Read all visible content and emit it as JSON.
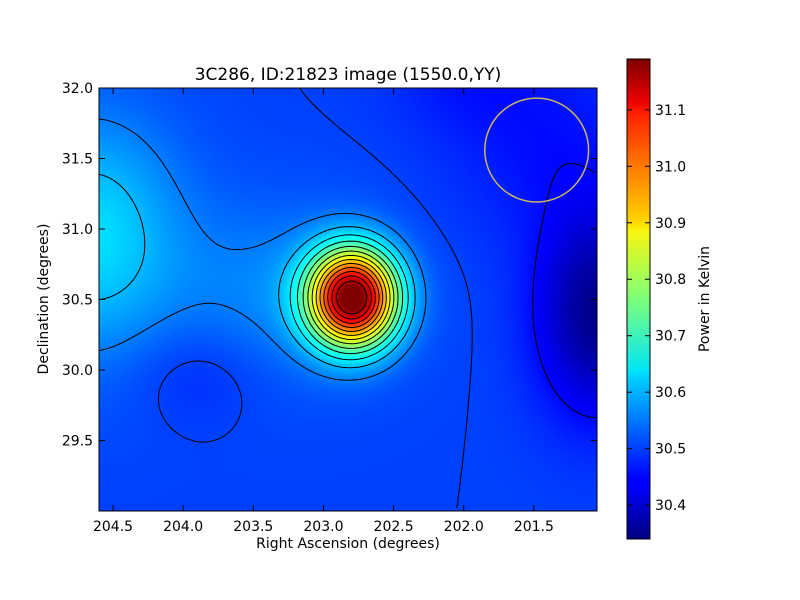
{
  "chart_data": {
    "type": "heatmap",
    "title": "3C286, ID:21823 image (1550.0,YY)",
    "xlabel": "Right Ascension (degrees)",
    "ylabel": "Declination (degrees)",
    "xlim": [
      204.6,
      201.05
    ],
    "ylim": [
      29.0,
      32.0
    ],
    "x_reversed": true,
    "xticks": [
      204.5,
      204.0,
      203.5,
      203.0,
      202.5,
      202.0,
      201.5
    ],
    "xtick_labels": [
      "204.5",
      "204.0",
      "203.5",
      "203.0",
      "202.5",
      "202.0",
      "201.5"
    ],
    "yticks": [
      29.5,
      30.0,
      30.5,
      31.0,
      31.5,
      32.0
    ],
    "ytick_labels": [
      "29.5",
      "30.0",
      "30.5",
      "31.0",
      "31.5",
      "32.0"
    ],
    "colorbar": {
      "label": "Power in Kelvin",
      "range": [
        30.34,
        31.19
      ],
      "ticks": [
        30.4,
        30.5,
        30.6,
        30.7,
        30.8,
        30.9,
        31.0,
        31.1
      ],
      "tick_labels": [
        "30.4",
        "30.5",
        "30.6",
        "30.7",
        "30.8",
        "30.9",
        "31.0",
        "31.1"
      ],
      "colormap": "jet"
    },
    "contours": true,
    "features": [
      {
        "kind": "peak",
        "ra": 202.79,
        "dec": 30.51,
        "value": 31.19
      },
      {
        "kind": "minimum",
        "ra": 201.05,
        "dec": 30.4,
        "value": 30.34
      },
      {
        "kind": "beam_circle",
        "ra": 201.48,
        "dec": 31.56,
        "radius_deg": 0.37
      }
    ],
    "colors": {
      "beam_circle": "#c8b75c",
      "contour": "#000000"
    }
  }
}
